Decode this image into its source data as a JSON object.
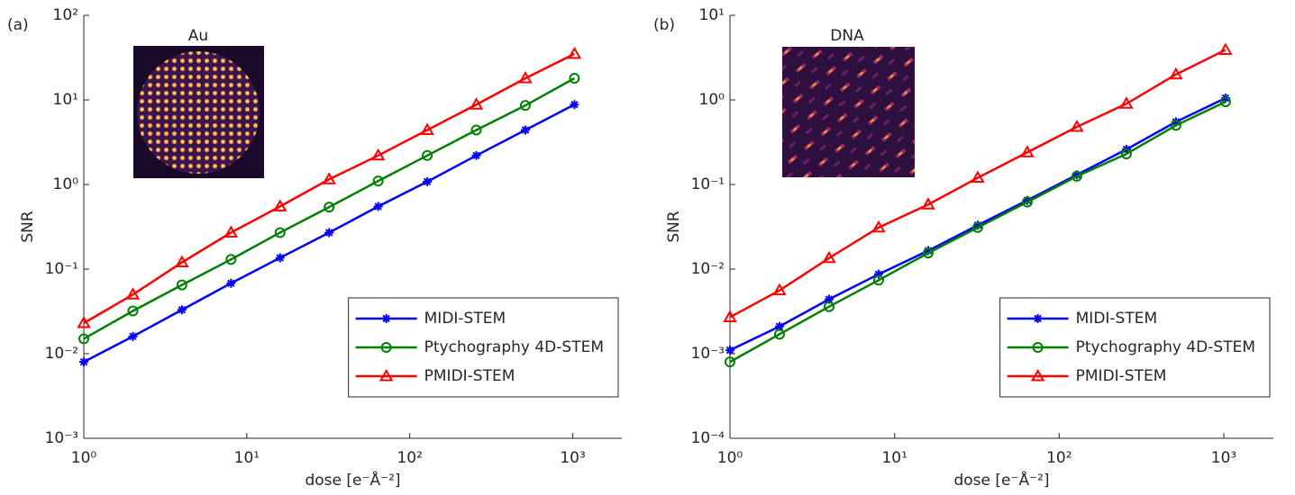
{
  "chart_data": [
    {
      "type": "line",
      "panel_label": "(a)",
      "inset_title": "Au",
      "xlabel": "dose [e⁻Å⁻²]",
      "ylabel": "SNR",
      "xscale": "log",
      "yscale": "log",
      "xlim": [
        1,
        2000
      ],
      "ylim": [
        0.001,
        100
      ],
      "xticks": [
        {
          "value": 1,
          "label": "10⁰"
        },
        {
          "value": 10,
          "label": "10¹"
        },
        {
          "value": 100,
          "label": "10²"
        },
        {
          "value": 1000,
          "label": "10³"
        }
      ],
      "yticks": [
        {
          "value": 0.001,
          "label": "10⁻³"
        },
        {
          "value": 0.01,
          "label": "10⁻²"
        },
        {
          "value": 0.1,
          "label": "10⁻¹"
        },
        {
          "value": 1,
          "label": "10⁰"
        },
        {
          "value": 10,
          "label": "10¹"
        },
        {
          "value": 100,
          "label": "10²"
        }
      ],
      "legend": "lower right",
      "x": [
        1,
        2,
        4,
        8,
        16,
        32,
        64,
        128,
        256,
        512,
        1024
      ],
      "series": [
        {
          "name": "MIDI-STEM",
          "color": "#0000ff",
          "marker": "asterisk",
          "values": [
            0.008,
            0.016,
            0.033,
            0.068,
            0.136,
            0.27,
            0.55,
            1.08,
            2.2,
            4.4,
            8.8
          ]
        },
        {
          "name": "Ptychography 4D-STEM",
          "color": "#008000",
          "marker": "circle",
          "values": [
            0.015,
            0.032,
            0.065,
            0.13,
            0.27,
            0.54,
            1.1,
            2.2,
            4.4,
            8.6,
            18
          ]
        },
        {
          "name": "PMIDI-STEM",
          "color": "#ff0000",
          "marker": "triangle",
          "values": [
            0.023,
            0.05,
            0.12,
            0.27,
            0.55,
            1.15,
            2.2,
            4.4,
            8.8,
            18,
            35
          ]
        }
      ]
    },
    {
      "type": "line",
      "panel_label": "(b)",
      "inset_title": "DNA",
      "xlabel": "dose [e⁻Å⁻²]",
      "ylabel": "SNR",
      "xscale": "log",
      "yscale": "log",
      "xlim": [
        1,
        2000
      ],
      "ylim": [
        0.0001,
        10
      ],
      "xticks": [
        {
          "value": 1,
          "label": "10⁰"
        },
        {
          "value": 10,
          "label": "10¹"
        },
        {
          "value": 100,
          "label": "10²"
        },
        {
          "value": 1000,
          "label": "10³"
        }
      ],
      "yticks": [
        {
          "value": 0.0001,
          "label": "10⁻⁴"
        },
        {
          "value": 0.001,
          "label": "10⁻³"
        },
        {
          "value": 0.01,
          "label": "10⁻²"
        },
        {
          "value": 0.1,
          "label": "10⁻¹"
        },
        {
          "value": 1,
          "label": "10⁰"
        },
        {
          "value": 10,
          "label": "10¹"
        }
      ],
      "legend": "lower right",
      "x": [
        1,
        2,
        4,
        8,
        16,
        32,
        64,
        128,
        256,
        512,
        1024
      ],
      "series": [
        {
          "name": "MIDI-STEM",
          "color": "#0000ff",
          "marker": "asterisk",
          "values": [
            0.0011,
            0.0021,
            0.0044,
            0.0087,
            0.0165,
            0.033,
            0.065,
            0.13,
            0.26,
            0.55,
            1.05
          ]
        },
        {
          "name": "Ptychography 4D-STEM",
          "color": "#008000",
          "marker": "circle",
          "values": [
            0.0008,
            0.0017,
            0.0036,
            0.0074,
            0.0155,
            0.031,
            0.062,
            0.125,
            0.23,
            0.5,
            0.95
          ]
        },
        {
          "name": "PMIDI-STEM",
          "color": "#ff0000",
          "marker": "triangle",
          "values": [
            0.0027,
            0.0056,
            0.0135,
            0.031,
            0.058,
            0.12,
            0.24,
            0.48,
            0.9,
            2.0,
            3.9
          ]
        }
      ]
    }
  ]
}
